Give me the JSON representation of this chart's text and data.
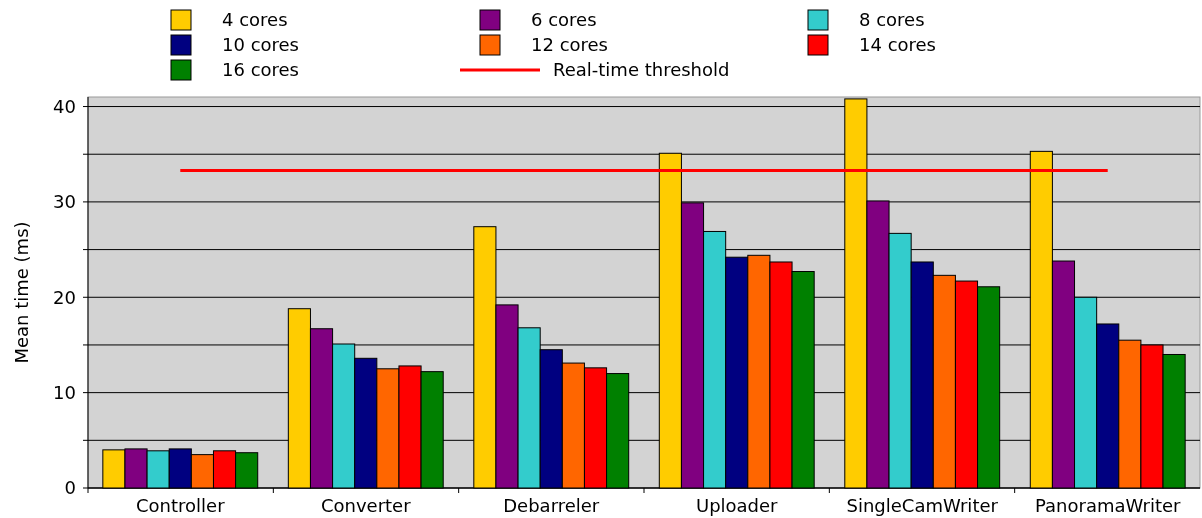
{
  "chart_data": {
    "type": "bar",
    "ylabel": "Mean time (ms)",
    "categories": [
      "Controller",
      "Converter",
      "Debarreler",
      "Uploader",
      "SingleCamWriter",
      "PanoramaWriter"
    ],
    "series": [
      {
        "name": "4 cores",
        "color": "#ffcc00",
        "values": [
          4.0,
          18.8,
          27.4,
          35.1,
          40.8,
          35.3
        ]
      },
      {
        "name": "6 cores",
        "color": "#800080",
        "values": [
          4.1,
          16.7,
          19.2,
          29.9,
          30.1,
          23.8
        ]
      },
      {
        "name": "8 cores",
        "color": "#33cccc",
        "values": [
          3.9,
          15.1,
          16.8,
          26.9,
          26.7,
          20.0
        ]
      },
      {
        "name": "10 cores",
        "color": "#000080",
        "values": [
          4.1,
          13.6,
          14.5,
          24.2,
          23.7,
          17.2
        ]
      },
      {
        "name": "12 cores",
        "color": "#ff6600",
        "values": [
          3.5,
          12.5,
          13.1,
          24.4,
          22.3,
          15.5
        ]
      },
      {
        "name": "14 cores",
        "color": "#ff0000",
        "values": [
          3.9,
          12.8,
          12.6,
          23.7,
          21.7,
          15.0
        ]
      },
      {
        "name": "16 cores",
        "color": "#008000",
        "values": [
          3.7,
          12.2,
          12.0,
          22.7,
          21.1,
          14.0
        ]
      }
    ],
    "ref_lines": [
      {
        "axis": "y",
        "value": 33.3,
        "label": "Real-time threshold",
        "color": "#ff0000"
      }
    ],
    "ylim": [
      0,
      41
    ],
    "yticks": [
      0,
      {
        "value": 5,
        "label": null
      },
      10,
      {
        "value": 15,
        "label": null
      },
      20,
      {
        "value": 25,
        "label": null
      },
      30,
      {
        "value": 35,
        "label": null
      },
      40
    ],
    "grid": true,
    "legend": "top"
  }
}
